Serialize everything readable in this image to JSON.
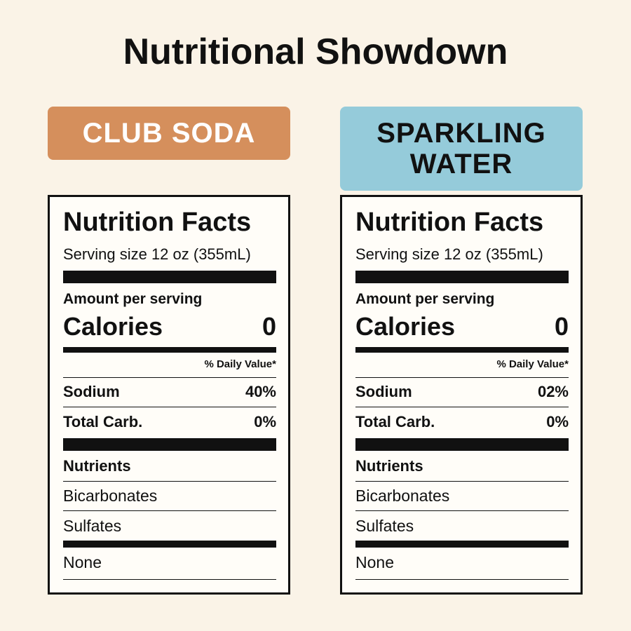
{
  "title": "Nutritional Showdown",
  "panels": [
    {
      "badge": {
        "text": "CLUB SODA",
        "color": "#d58f5c",
        "text_color": "#ffffff"
      },
      "label": {
        "heading": "Nutrition Facts",
        "serving": "Serving size 12 oz (355mL)",
        "amount": "Amount per serving",
        "calories_label": "Calories",
        "calories": "0",
        "daily_value": "% Daily Value*",
        "rows": [
          [
            "Sodium",
            "40%"
          ],
          [
            "Total Carb.",
            "0%"
          ]
        ],
        "nutrients_heading": "Nutrients",
        "nutrients": [
          "Bicarbonates",
          "Sulfates"
        ],
        "footer": "None"
      }
    },
    {
      "badge": {
        "text": "SPARKLING WATER",
        "color": "#95cbda",
        "text_color": "#111111"
      },
      "label": {
        "heading": "Nutrition Facts",
        "serving": "Serving size 12 oz (355mL)",
        "amount": "Amount per serving",
        "calories_label": "Calories",
        "calories": "0",
        "daily_value": "% Daily Value*",
        "rows": [
          [
            "Sodium",
            "02%"
          ],
          [
            "Total Carb.",
            "0%"
          ]
        ],
        "nutrients_heading": "Nutrients",
        "nutrients": [
          "Bicarbonates",
          "Sulfates"
        ],
        "footer": "None"
      }
    }
  ]
}
